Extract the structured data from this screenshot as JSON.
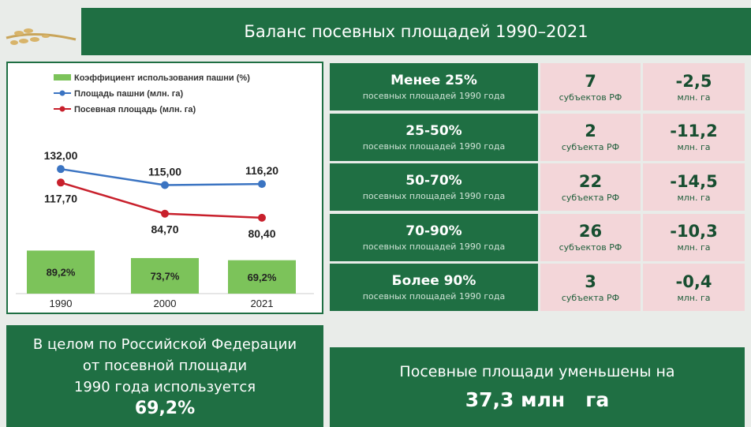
{
  "header": {
    "title": "Баланс посевных площадей 1990–2021"
  },
  "chart_data": {
    "type": "combo",
    "categories": [
      "1990",
      "2000",
      "2021"
    ],
    "ylim": [
      0,
      225
    ],
    "y2lim": [
      0,
      440
    ],
    "series": [
      {
        "name": "Коэффициент использования пашни (%)",
        "type": "bar",
        "axis": "y2",
        "color": "#7cc35a",
        "values": [
          89.2,
          73.7,
          69.2
        ],
        "value_labels": [
          "89,2%",
          "73,7%",
          "69,2%"
        ]
      },
      {
        "name": "Площадь пашни (млн. га)",
        "type": "line",
        "color": "#3b74c2",
        "values": [
          132.0,
          115.0,
          116.2
        ],
        "value_labels": [
          "132,00",
          "115,00",
          "116,20"
        ]
      },
      {
        "name": "Посевная площадь (млн. га)",
        "type": "line",
        "color": "#c8202c",
        "values": [
          117.7,
          84.7,
          80.4
        ],
        "value_labels": [
          "117,70",
          "84,70",
          "80,40"
        ]
      }
    ]
  },
  "table": {
    "rows": [
      [
        "Менее 25%",
        "посевных площадей 1990 года",
        "7",
        "субъектов РФ",
        "-2,5",
        "млн. га"
      ],
      [
        "25-50%",
        "посевных площадей 1990 года",
        "2",
        "субъекта РФ",
        "-11,2",
        "млн. га"
      ],
      [
        "50-70%",
        "посевных площадей 1990 года",
        "22",
        "субъекта РФ",
        "-14,5",
        "млн. га"
      ],
      [
        "70-90%",
        "посевных площадей 1990 года",
        "26",
        "субъектов РФ",
        "-10,3",
        "млн. га"
      ],
      [
        "Более 90%",
        "посевных площадей 1990 года",
        "3",
        "субъекта РФ",
        "-0,4",
        "млн. га"
      ]
    ]
  },
  "summary_left": {
    "lines": [
      "В целом по Российской Федерации",
      "от посевной площади",
      "1990 года используется",
      "69,2%"
    ]
  },
  "summary_right": {
    "lines": [
      "Посевные площади уменьшены на",
      "37,3 млн   га"
    ]
  }
}
